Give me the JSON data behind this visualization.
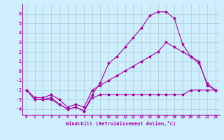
{
  "xlabel": "Windchill (Refroidissement éolien,°C)",
  "bg_color": "#cceeff",
  "grid_color": "#aacccc",
  "line_color": "#aa00aa",
  "xlim": [
    -0.5,
    23.5
  ],
  "ylim": [
    -4.6,
    7.0
  ],
  "xticks": [
    0,
    1,
    2,
    3,
    4,
    5,
    6,
    7,
    8,
    9,
    10,
    11,
    12,
    13,
    14,
    15,
    16,
    17,
    18,
    19,
    20,
    21,
    22,
    23
  ],
  "yticks": [
    -4,
    -3,
    -2,
    -1,
    0,
    1,
    2,
    3,
    4,
    5,
    6
  ],
  "line_bottom_x": [
    0,
    1,
    2,
    3,
    4,
    5,
    6,
    7,
    8,
    9,
    10,
    11,
    12,
    13,
    14,
    15,
    16,
    17,
    18,
    19,
    20,
    21,
    22,
    23
  ],
  "line_bottom_y": [
    -2.0,
    -3.0,
    -3.0,
    -3.0,
    -3.5,
    -4.0,
    -3.8,
    -4.2,
    -2.8,
    -2.5,
    -2.5,
    -2.5,
    -2.5,
    -2.5,
    -2.5,
    -2.5,
    -2.5,
    -2.5,
    -2.5,
    -2.5,
    -2.0,
    -2.0,
    -2.0,
    -2.0
  ],
  "line_peak_x": [
    0,
    1,
    2,
    3,
    4,
    5,
    6,
    7,
    8,
    9,
    10,
    11,
    12,
    13,
    14,
    15,
    16,
    17,
    18,
    19,
    20,
    21,
    22,
    23
  ],
  "line_peak_y": [
    -2.0,
    -3.0,
    -3.0,
    -2.8,
    -3.5,
    -4.0,
    -3.8,
    -4.2,
    -2.5,
    -1.2,
    0.8,
    1.5,
    2.5,
    3.5,
    4.5,
    5.8,
    6.2,
    6.2,
    5.5,
    2.8,
    1.5,
    0.8,
    -1.3,
    -2.0
  ],
  "line_diag_x": [
    0,
    1,
    2,
    3,
    4,
    5,
    6,
    7,
    8,
    9,
    10,
    11,
    12,
    13,
    14,
    15,
    16,
    17,
    18,
    19,
    20,
    21,
    22,
    23
  ],
  "line_diag_y": [
    -2.0,
    -2.8,
    -2.8,
    -2.5,
    -3.0,
    -3.8,
    -3.5,
    -3.8,
    -2.0,
    -1.5,
    -1.0,
    -0.5,
    0.0,
    0.5,
    1.0,
    1.5,
    2.0,
    3.0,
    2.5,
    2.0,
    1.5,
    1.0,
    -1.5,
    -2.0
  ]
}
